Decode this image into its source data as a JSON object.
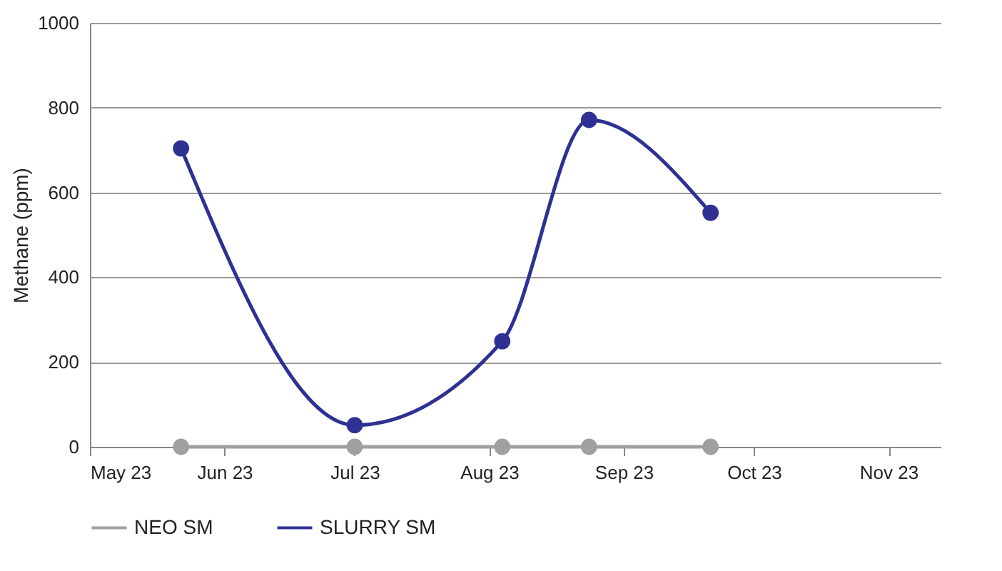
{
  "chart_data": {
    "type": "line",
    "ylabel": "Methane (ppm)",
    "x": [
      "2023-05-22",
      "2023-07-01",
      "2023-08-04",
      "2023-08-24",
      "2023-09-21"
    ],
    "series": [
      {
        "name": "NEO SM",
        "color": "#a0a0a0",
        "values": [
          0,
          0,
          0,
          0,
          0
        ]
      },
      {
        "name": "SLURRY SM",
        "color": "#2e3192",
        "values": [
          704,
          51,
          249,
          771,
          552
        ]
      }
    ],
    "xlim": [
      "2023-05-01",
      "2023-11-13"
    ],
    "xticks": [
      {
        "value": "2023-05-01",
        "label": "May 23"
      },
      {
        "value": "2023-06-01",
        "label": "Jun 23"
      },
      {
        "value": "2023-07-01",
        "label": "Jul 23"
      },
      {
        "value": "2023-08-01",
        "label": "Aug 23"
      },
      {
        "value": "2023-09-01",
        "label": "Sep 23"
      },
      {
        "value": "2023-10-01",
        "label": "Oct 23"
      },
      {
        "value": "2023-11-01",
        "label": "Nov 23"
      }
    ],
    "ylim": [
      0,
      1000
    ],
    "yticks": [
      0,
      200,
      400,
      600,
      800,
      1000
    ],
    "grid": "y",
    "legend": "bottom",
    "marker": "circle",
    "line_style": "solid"
  }
}
